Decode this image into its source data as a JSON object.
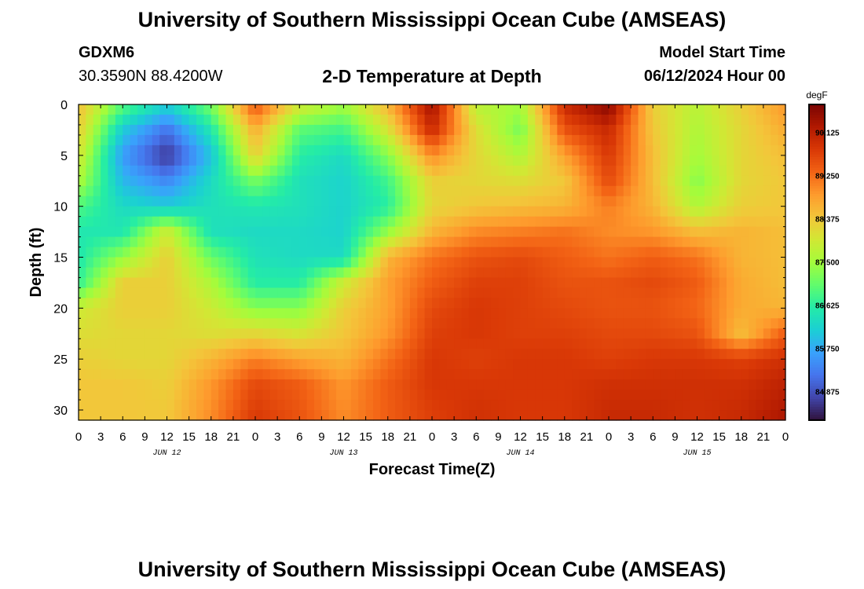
{
  "page": {
    "title": "University of Southern Mississippi Ocean Cube (AMSEAS)",
    "title_repeat": "University of Southern Mississippi Ocean Cube (AMSEAS)",
    "station_name": "GDXM6",
    "station_coords": "30.3590N  88.4200W",
    "subtitle": "2-D Temperature at Depth",
    "model_start_label": "Model Start Time",
    "model_start_value": "06/12/2024 Hour 00"
  },
  "chart_data": {
    "type": "heatmap",
    "title": "2-D Temperature at Depth",
    "xlabel": "Forecast Time(Z)",
    "ylabel": "Depth (ft)",
    "x_range_hours": [
      0,
      96
    ],
    "x_step_hours": 3,
    "x_tick_labels": [
      "0",
      "3",
      "6",
      "9",
      "12",
      "15",
      "18",
      "21",
      "0",
      "3",
      "6",
      "9",
      "12",
      "15",
      "18",
      "21",
      "0",
      "3",
      "6",
      "9",
      "12",
      "15",
      "18",
      "21",
      "0",
      "3",
      "6",
      "9",
      "12",
      "15",
      "18",
      "21",
      "0"
    ],
    "date_labels": [
      {
        "label": "JUN 12",
        "hour": 12
      },
      {
        "label": "JUN 13",
        "hour": 36
      },
      {
        "label": "JUN 14",
        "hour": 60
      },
      {
        "label": "JUN 15",
        "hour": 84
      }
    ],
    "ylim": [
      0,
      31
    ],
    "y_tick_labels": [
      "0",
      "5",
      "10",
      "15",
      "20",
      "25",
      "30"
    ],
    "y_ticks": [
      0,
      5,
      10,
      15,
      20,
      25,
      30
    ],
    "colorbar_unit": "degF",
    "colorbar_labels": [
      "90.125",
      "89.250",
      "88.375",
      "87.500",
      "86.625",
      "85.750",
      "84.875"
    ],
    "color_range": [
      84.3,
      90.7
    ],
    "colorscale": [
      "#30123b",
      "#4145ab",
      "#4675ed",
      "#39a2fc",
      "#1bcfd4",
      "#24eca6",
      "#61fc6c",
      "#a4fc3b",
      "#d1e834",
      "#f3c63a",
      "#fe9b2d",
      "#f36315",
      "#d93806",
      "#b11901",
      "#7a0402"
    ],
    "control_points": {
      "times": [
        0,
        6,
        12,
        18,
        24,
        30,
        36,
        42,
        48,
        54,
        60,
        66,
        72,
        78,
        84,
        90,
        96
      ],
      "depths": [
        0,
        2.5,
        5,
        7.5,
        10,
        12.5,
        15,
        17.5,
        20,
        22.5,
        25,
        27.5,
        31
      ],
      "temps": [
        [
          88.5,
          87.0,
          86.2,
          87.2,
          89.5,
          88.0,
          87.5,
          88.6,
          90.4,
          87.7,
          87.5,
          90.0,
          90.6,
          88.3,
          87.7,
          88.3,
          88.9
        ],
        [
          88.3,
          86.1,
          85.2,
          86.5,
          88.7,
          87.0,
          86.8,
          88.0,
          90.0,
          88.1,
          87.2,
          89.5,
          90.0,
          88.4,
          87.6,
          88.2,
          88.7
        ],
        [
          88.0,
          85.6,
          84.6,
          86.0,
          88.3,
          86.6,
          86.3,
          87.3,
          89.0,
          88.2,
          87.6,
          88.8,
          89.8,
          88.5,
          87.5,
          88.2,
          88.5
        ],
        [
          87.6,
          85.9,
          85.4,
          86.3,
          87.2,
          86.4,
          86.2,
          86.8,
          88.3,
          88.2,
          88.1,
          88.4,
          89.6,
          88.5,
          87.3,
          88.2,
          88.4
        ],
        [
          86.9,
          86.3,
          86.1,
          86.4,
          86.5,
          86.4,
          86.2,
          86.6,
          88.2,
          88.4,
          88.5,
          88.6,
          89.1,
          88.6,
          87.6,
          88.3,
          88.4
        ],
        [
          86.5,
          86.5,
          87.9,
          86.4,
          86.3,
          86.3,
          86.2,
          87.4,
          88.6,
          89.0,
          89.1,
          89.2,
          89.0,
          88.9,
          88.5,
          88.6,
          88.5
        ],
        [
          86.5,
          87.4,
          88.3,
          87.1,
          86.4,
          86.3,
          86.3,
          88.6,
          89.2,
          89.5,
          89.6,
          89.4,
          89.2,
          89.4,
          89.2,
          88.6,
          88.5
        ],
        [
          86.7,
          88.3,
          88.3,
          87.6,
          86.6,
          86.6,
          87.9,
          88.8,
          89.4,
          89.7,
          89.7,
          89.5,
          89.5,
          89.6,
          89.4,
          88.7,
          88.5
        ],
        [
          87.9,
          88.3,
          88.3,
          87.9,
          87.3,
          87.3,
          88.3,
          88.8,
          89.6,
          89.8,
          89.7,
          89.6,
          89.5,
          89.5,
          89.3,
          88.7,
          88.6
        ],
        [
          88.1,
          88.2,
          88.2,
          88.1,
          88.2,
          88.0,
          88.4,
          88.9,
          89.7,
          89.8,
          89.7,
          89.7,
          89.6,
          89.6,
          89.5,
          88.5,
          89.4
        ],
        [
          88.3,
          88.2,
          88.2,
          88.6,
          89.1,
          88.8,
          88.6,
          89.2,
          89.8,
          89.7,
          89.8,
          89.8,
          89.7,
          89.8,
          89.8,
          89.7,
          89.9
        ],
        [
          88.4,
          88.4,
          88.3,
          88.9,
          89.6,
          89.4,
          88.9,
          89.4,
          89.8,
          89.8,
          89.8,
          89.8,
          89.9,
          89.9,
          89.9,
          89.9,
          90.1
        ],
        [
          88.4,
          88.4,
          88.4,
          89.0,
          89.8,
          89.5,
          89.0,
          89.4,
          89.7,
          89.9,
          89.8,
          89.8,
          90.0,
          90.0,
          89.9,
          90.0,
          90.3
        ]
      ]
    }
  }
}
